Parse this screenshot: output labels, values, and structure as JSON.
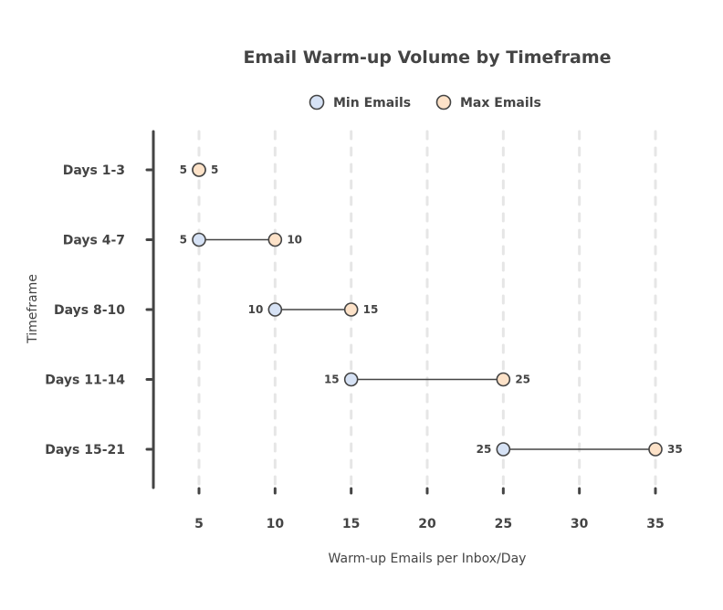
{
  "chart_data": {
    "type": "dumbbell",
    "title": "Email Warm-up Volume by Timeframe",
    "xlabel": "Warm-up Emails per Inbox/Day",
    "ylabel": "Timeframe",
    "xlim": [
      2,
      36
    ],
    "xticks": [
      5,
      10,
      15,
      20,
      25,
      30,
      35
    ],
    "grid": "vertical dashed",
    "legend_position": "top-center",
    "categories": [
      "Days 1-3",
      "Days 4-7",
      "Days 8-10",
      "Days 11-14",
      "Days 15-21"
    ],
    "series": [
      {
        "name": "Min Emails",
        "color": "#d6e2f5",
        "values": [
          5,
          5,
          10,
          15,
          25
        ]
      },
      {
        "name": "Max Emails",
        "color": "#fde2c8",
        "values": [
          5,
          10,
          15,
          25,
          35
        ]
      }
    ]
  }
}
